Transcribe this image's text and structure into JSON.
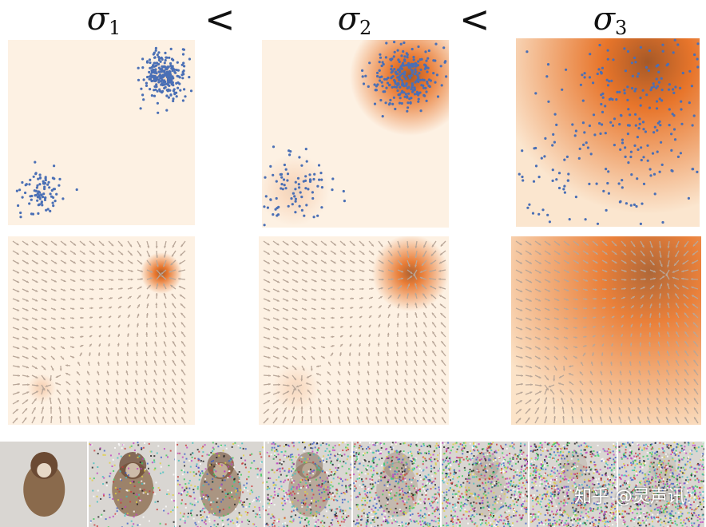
{
  "labels": {
    "sigma1": "σ",
    "sigma1_sub": "1",
    "sigma2": "σ",
    "sigma2_sub": "2",
    "sigma3": "σ",
    "sigma3_sub": "3",
    "less_than_1": "<",
    "less_than_2": "<"
  },
  "colors": {
    "background": "#fdf1e3",
    "density": "#e4620f",
    "density_core": "#a0511f",
    "points": "#4a6fb5",
    "arrows": "#b8a698"
  },
  "noise_levels": [
    0.0,
    0.25,
    0.45,
    0.65,
    0.82,
    0.92,
    0.97,
    1.0
  ],
  "watermark": "知乎 @灵声讯"
}
